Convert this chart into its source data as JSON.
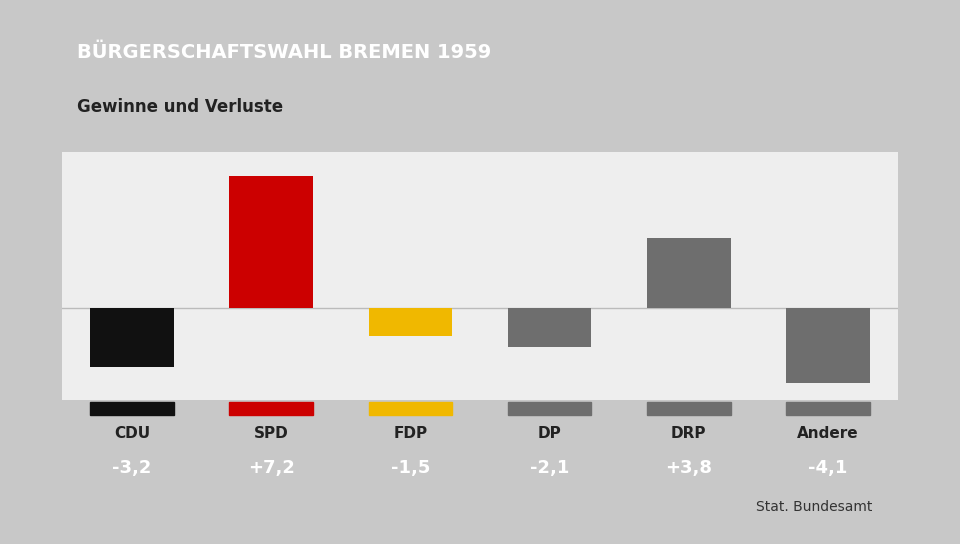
{
  "title": "BÜRGERSCHAFTSWAHL BREMEN 1959",
  "subtitle": "Gewinne und Verluste",
  "source": "Stat. Bundesamt",
  "categories": [
    "CDU",
    "SPD",
    "FDP",
    "DP",
    "DRP",
    "Andere"
  ],
  "values": [
    -3.2,
    7.2,
    -1.5,
    -2.1,
    3.8,
    -4.1
  ],
  "labels": [
    "-3,2",
    "+7,2",
    "-1,5",
    "-2,1",
    "+3,8",
    "-4,1"
  ],
  "colors": [
    "#111111",
    "#cc0000",
    "#f0b800",
    "#6e6e6e",
    "#6e6e6e",
    "#6e6e6e"
  ],
  "title_bg": "#1a3f7a",
  "title_color": "#ffffff",
  "subtitle_bg": "#ffffff",
  "subtitle_color": "#222222",
  "value_bar_bg": "#4a7ab5",
  "value_text_color": "#ffffff",
  "bg_color": "#c8c8c8",
  "chart_bg": "#f0f0f0",
  "ylim": [
    -5.0,
    8.5
  ],
  "bar_width": 0.6
}
